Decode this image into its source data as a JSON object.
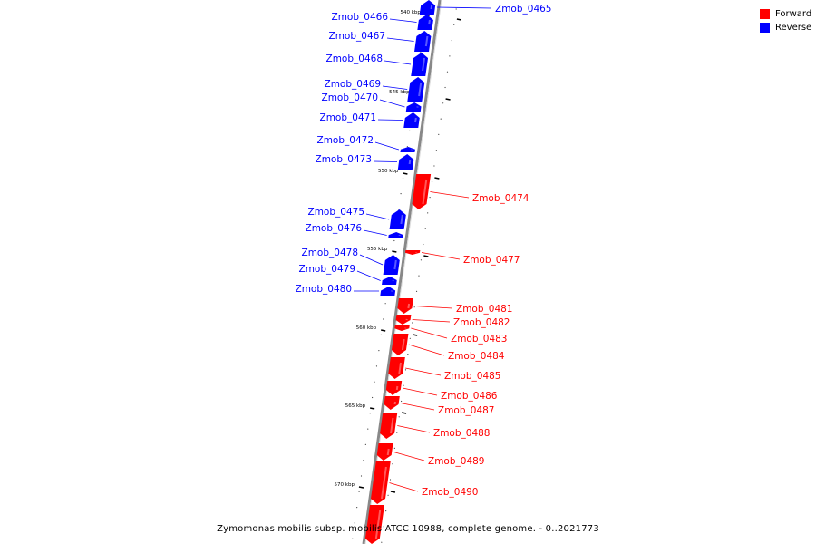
{
  "colors": {
    "forward": "#ff0000",
    "reverse": "#0000ff",
    "backbone": "#999999"
  },
  "legend": {
    "forward_label": "Forward",
    "reverse_label": "Reverse"
  },
  "caption": "Zymomonas mobilis subsp. mobilis ATCC 10988, complete genome. - 0..2021773",
  "scale": {
    "unit": "kbp",
    "major_ticks_kbp": [
      540,
      545,
      550,
      555,
      560,
      565,
      570
    ]
  },
  "genes": [
    {
      "name": "Zmob_0465",
      "strand": "reverse"
    },
    {
      "name": "Zmob_0466",
      "strand": "reverse"
    },
    {
      "name": "Zmob_0467",
      "strand": "reverse"
    },
    {
      "name": "Zmob_0468",
      "strand": "reverse"
    },
    {
      "name": "Zmob_0469",
      "strand": "reverse"
    },
    {
      "name": "Zmob_0470",
      "strand": "reverse"
    },
    {
      "name": "Zmob_0471",
      "strand": "reverse"
    },
    {
      "name": "Zmob_0472",
      "strand": "reverse"
    },
    {
      "name": "Zmob_0473",
      "strand": "reverse"
    },
    {
      "name": "Zmob_0474",
      "strand": "forward"
    },
    {
      "name": "Zmob_0475",
      "strand": "reverse"
    },
    {
      "name": "Zmob_0476",
      "strand": "reverse"
    },
    {
      "name": "Zmob_0477",
      "strand": "forward"
    },
    {
      "name": "Zmob_0478",
      "strand": "reverse"
    },
    {
      "name": "Zmob_0479",
      "strand": "reverse"
    },
    {
      "name": "Zmob_0480",
      "strand": "reverse"
    },
    {
      "name": "Zmob_0481",
      "strand": "forward"
    },
    {
      "name": "Zmob_0482",
      "strand": "forward"
    },
    {
      "name": "Zmob_0483",
      "strand": "forward"
    },
    {
      "name": "Zmob_0484",
      "strand": "forward"
    },
    {
      "name": "Zmob_0485",
      "strand": "forward"
    },
    {
      "name": "Zmob_0486",
      "strand": "forward"
    },
    {
      "name": "Zmob_0487",
      "strand": "forward"
    },
    {
      "name": "Zmob_0488",
      "strand": "forward"
    },
    {
      "name": "Zmob_0489",
      "strand": "forward"
    },
    {
      "name": "Zmob_0490",
      "strand": "forward"
    }
  ]
}
